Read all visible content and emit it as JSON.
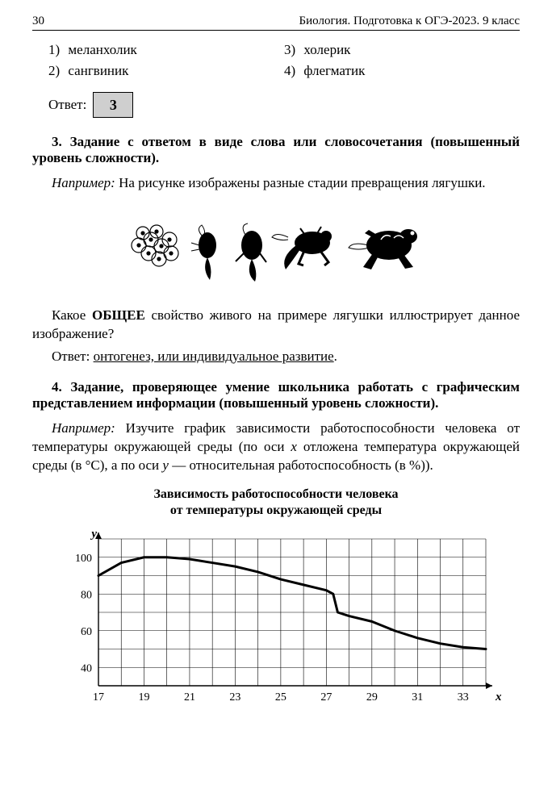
{
  "header": {
    "page_number": "30",
    "running_title": "Биология. Подготовка к ОГЭ-2023. 9 класс"
  },
  "options": {
    "o1_num": "1)",
    "o1_text": "меланхолик",
    "o2_num": "2)",
    "o2_text": "сангвиник",
    "o3_num": "3)",
    "o3_text": "холерик",
    "o4_num": "4)",
    "o4_text": "флегматик"
  },
  "answer": {
    "label": "Ответ:",
    "value": "3"
  },
  "task3": {
    "title": "3. Задание с ответом в виде слова или словосочетания (повышенный уровень сложности).",
    "example_label": "Например:",
    "example_text": " На рисунке изображены разные стадии превращения лягушки.",
    "question_pre": "Какое ",
    "question_bold": "ОБЩЕЕ",
    "question_post": " свойство живого на примере лягушки иллюстрирует данное изображение?",
    "answer_label": "Ответ: ",
    "answer_text": "онтогенез, или индивидуальное развитие",
    "answer_period": "."
  },
  "task4": {
    "title": "4. Задание, проверяющее умение школьника работать с графическим представлением информации (повышенный уровень сложности).",
    "example_label": "Например:",
    "example_text": " Изучите график зависимости работоспособности человека от температуры окружающей среды (по оси ",
    "x_italic": "x",
    "text2": " отложена температура окружающей среды (в °C), а по оси ",
    "y_italic": "y",
    "text3": " — относительная работоспособность (в %))."
  },
  "chart": {
    "type": "line",
    "title_line1": "Зависимость работоспособности человека",
    "title_line2": "от температуры окружающей среды",
    "x_label": "x",
    "y_label": "y",
    "x_ticks": [
      17,
      19,
      21,
      23,
      25,
      27,
      29,
      31,
      33
    ],
    "y_ticks": [
      40,
      60,
      80,
      100
    ],
    "xlim": [
      17,
      34
    ],
    "ylim": [
      30,
      110
    ],
    "grid_color": "#000000",
    "grid_width": 0.6,
    "axis_color": "#000000",
    "axis_width": 1.4,
    "line_color": "#000000",
    "line_width": 3,
    "background_color": "#ffffff",
    "tick_fontsize": 14,
    "label_fontsize": 15,
    "data": [
      {
        "x": 17,
        "y": 90
      },
      {
        "x": 18,
        "y": 97
      },
      {
        "x": 19,
        "y": 100
      },
      {
        "x": 20,
        "y": 100
      },
      {
        "x": 21,
        "y": 99
      },
      {
        "x": 22,
        "y": 97
      },
      {
        "x": 23,
        "y": 95
      },
      {
        "x": 24,
        "y": 92
      },
      {
        "x": 25,
        "y": 88
      },
      {
        "x": 26,
        "y": 85
      },
      {
        "x": 27,
        "y": 82
      },
      {
        "x": 27.3,
        "y": 80
      },
      {
        "x": 27.5,
        "y": 70
      },
      {
        "x": 28,
        "y": 68
      },
      {
        "x": 29,
        "y": 65
      },
      {
        "x": 30,
        "y": 60
      },
      {
        "x": 31,
        "y": 56
      },
      {
        "x": 32,
        "y": 53
      },
      {
        "x": 33,
        "y": 51
      },
      {
        "x": 34,
        "y": 50
      }
    ]
  }
}
